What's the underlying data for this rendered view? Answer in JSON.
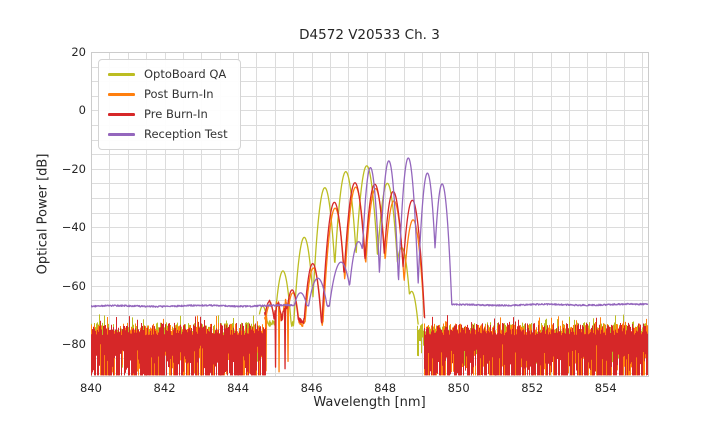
{
  "chart_data": {
    "type": "line",
    "title": "D4572 V20533 Ch. 3",
    "xlabel": "Wavelength [nm]",
    "ylabel": "Optical Power [dB]",
    "xlim": [
      840,
      855.15
    ],
    "ylim": [
      -91,
      20
    ],
    "xticks": [
      840,
      842,
      844,
      846,
      848,
      850,
      852,
      854
    ],
    "yticks": [
      20,
      0,
      -20,
      -40,
      -60,
      -80
    ],
    "grid": {
      "minor_x_step": 0.5,
      "minor_y_step": 5,
      "color": "#dcdcdc",
      "border_color": "#cccccc",
      "on": true
    },
    "legend": {
      "position": "upper left",
      "entries": [
        "OptoBoard QA",
        "Post Burn-In",
        "Pre Burn-In",
        "Reception Test"
      ]
    },
    "series": [
      {
        "name": "OptoBoard QA",
        "color": "#bcbd22",
        "seed": 101,
        "mode_sharpness": 360,
        "valley_clamp_db": -72,
        "signal_range": [
          844.58,
          848.9
        ],
        "mode_peaks": [
          [
            844.67,
            -67
          ],
          [
            845.22,
            -55
          ],
          [
            845.8,
            -43.5
          ],
          [
            846.36,
            -26.5
          ],
          [
            846.93,
            -21.0
          ],
          [
            847.5,
            -19.0
          ],
          [
            848.06,
            -25.0
          ],
          [
            848.45,
            -47
          ],
          [
            848.72,
            -62
          ]
        ],
        "noise_regions": [
          [
            840,
            844.58
          ],
          [
            848.88,
            855.15
          ]
        ],
        "noise": {
          "top_db": -72.5,
          "top_var_db": 4.5,
          "min_depth_db": 4,
          "depth_var_db": 9
        }
      },
      {
        "name": "Post Burn-In",
        "color": "#ff7f0e",
        "seed": 202,
        "mode_sharpness": 360,
        "valley_clamp_db": -72,
        "signal_range": [
          845.55,
          849.07
        ],
        "transition_range": [
          844.72,
          845.55
        ],
        "dropout_spikes_nm": [
          844.76,
          845.12,
          845.36
        ],
        "mode_peaks": [
          [
            844.87,
            -66.5
          ],
          [
            845.49,
            -62.5
          ],
          [
            846.05,
            -54
          ],
          [
            846.64,
            -33.5
          ],
          [
            847.2,
            -26.3
          ],
          [
            847.74,
            -26.8
          ],
          [
            848.24,
            -31
          ],
          [
            848.76,
            -37.5
          ]
        ],
        "noise_regions": [
          [
            840,
            844.72
          ],
          [
            849.06,
            855.15
          ]
        ],
        "noise": {
          "top_db": -73,
          "top_var_db": 4,
          "min_depth_db": 5,
          "depth_var_db": 20
        }
      },
      {
        "name": "Pre Burn-In",
        "color": "#d62728",
        "seed": 303,
        "mode_sharpness": 360,
        "valley_clamp_db": -71,
        "signal_range": [
          845.55,
          849.08
        ],
        "transition_range": [
          844.72,
          845.55
        ],
        "dropout_spikes_nm": [
          845.02,
          845.28
        ],
        "mode_peaks": [
          [
            844.85,
            -65.5
          ],
          [
            845.47,
            -61.5
          ],
          [
            846.03,
            -52.5
          ],
          [
            846.62,
            -31.5
          ],
          [
            847.18,
            -24.8
          ],
          [
            847.72,
            -25.3
          ],
          [
            848.22,
            -27.8
          ],
          [
            848.74,
            -30.8
          ]
        ],
        "noise_regions": [
          [
            840,
            844.72
          ],
          [
            849.06,
            855.15
          ]
        ],
        "noise": {
          "top_db": -72.8,
          "top_var_db": 4.2,
          "min_depth_db": 7,
          "depth_var_db": 22
        }
      },
      {
        "name": "Reception Test",
        "color": "#9467bd",
        "seed": 404,
        "mode_sharpness": 600,
        "baseline": {
          "start_db": -67.1,
          "end_db": -66.5
        },
        "mode_peaks": [
          [
            845.7,
            -62.5,
            150
          ],
          [
            846.17,
            -57.5,
            150
          ],
          [
            846.8,
            -52,
            150
          ],
          [
            847.28,
            -45,
            250
          ],
          [
            847.6,
            -19.6,
            600
          ],
          [
            848.1,
            -17.3,
            600
          ],
          [
            848.63,
            -16.3,
            600
          ],
          [
            849.15,
            -21.5,
            600
          ],
          [
            849.55,
            -25.2,
            600
          ]
        ]
      }
    ]
  }
}
